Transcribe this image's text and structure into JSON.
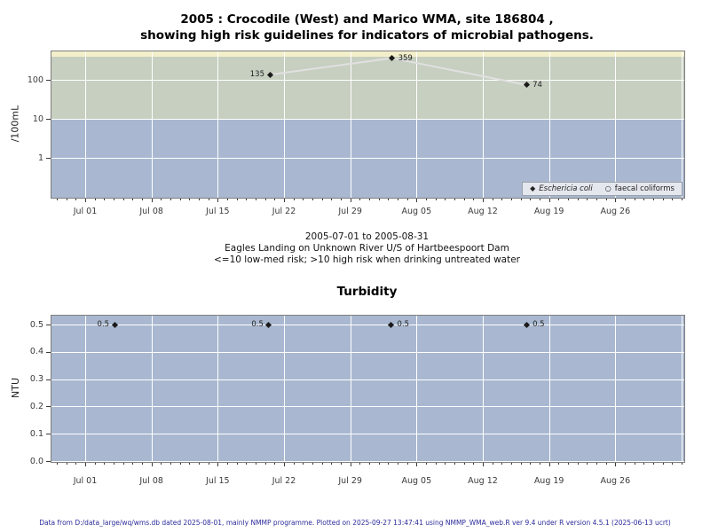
{
  "header": {
    "title_line1": "2005 : Crocodile (West) and Marico WMA, site 186804 ,",
    "title_line2": "showing high risk guidelines for indicators of microbial pathogens."
  },
  "subtitle": {
    "lines": [
      "2005-07-01 to 2005-08-31",
      "Eagles Landing on Unknown River U/S of Hartbeespoort Dam",
      "<=10 low-med risk; >10 high risk when drinking untreated water"
    ]
  },
  "footer": {
    "text": "Data from D:/data_large/wq/wms.db dated 2025-08-01, mainly NMMP programme. Plotted on 2025-09-27 13:47:41 using NMMP_WMA_web.R ver 9.4 under R version 4.5.1 (2025-06-13 ucrt)",
    "color": "#2b2b9b"
  },
  "chart_data": [
    {
      "type": "line",
      "title": "",
      "ylabel": "/100mL",
      "yscale": "log",
      "ylim": [
        0.09,
        533
      ],
      "yticks": [
        {
          "v": 100,
          "label": "100"
        },
        {
          "v": 10,
          "label": "10"
        },
        {
          "v": 1,
          "label": "1"
        }
      ],
      "x_unit": "days-after-2005-07-01",
      "xlim_days": [
        -3.6,
        63.3
      ],
      "xticks": [
        {
          "day": 0,
          "label": "Jul 01"
        },
        {
          "day": 7,
          "label": "Jul 08"
        },
        {
          "day": 14,
          "label": "Jul 15"
        },
        {
          "day": 21,
          "label": "Jul 22"
        },
        {
          "day": 28,
          "label": "Jul 29"
        },
        {
          "day": 35,
          "label": "Aug 05"
        },
        {
          "day": 42,
          "label": "Aug 12"
        },
        {
          "day": 49,
          "label": "Aug 19"
        },
        {
          "day": 56,
          "label": "Aug 26"
        }
      ],
      "grid_weekly_days": [
        0,
        7,
        14,
        21,
        28,
        35,
        42,
        49,
        56,
        63
      ],
      "bands": [
        {
          "name": "very-high-risk-band",
          "from": 400,
          "to": 533,
          "color": "#f3efca"
        },
        {
          "name": "high-risk-band",
          "from": 10,
          "to": 400,
          "color": "#c6cfc0"
        },
        {
          "name": "low-med-risk-band",
          "from": 0.09,
          "to": 10,
          "color": "#a9b8d0"
        }
      ],
      "series": [
        {
          "name": "Eschericia coli",
          "marker": "filled-diamond",
          "marker_color": "#1a1a1a",
          "line_color": "#e0e0e0",
          "points": [
            {
              "day": 19.5,
              "value": 135,
              "label": "135",
              "label_side": "left"
            },
            {
              "day": 32.4,
              "value": 359,
              "label": "359",
              "label_side": "right"
            },
            {
              "day": 46.6,
              "value": 74,
              "label": "74",
              "label_side": "right"
            }
          ]
        },
        {
          "name": "faecal coliforms",
          "marker": "open-circle",
          "marker_color": "#1a1a1a",
          "points": []
        }
      ],
      "legend": {
        "position": "bottom-right",
        "entries": [
          {
            "marker": "filled-diamond",
            "label": "Eschericia coli",
            "italic": true
          },
          {
            "marker": "open-circle",
            "label": "faecal coliforms",
            "italic": false
          }
        ]
      }
    },
    {
      "type": "scatter",
      "title": "Turbidity",
      "ylabel": "NTU",
      "yscale": "linear",
      "ylim": [
        -0.003,
        0.532
      ],
      "background_color": "#a9b8d0",
      "yticks": [
        {
          "v": 0.5,
          "label": "0.5"
        },
        {
          "v": 0.4,
          "label": "0.4"
        },
        {
          "v": 0.3,
          "label": "0.3"
        },
        {
          "v": 0.2,
          "label": "0.2"
        },
        {
          "v": 0.1,
          "label": "0.1"
        },
        {
          "v": 0.0,
          "label": "0.0"
        }
      ],
      "x_unit": "days-after-2005-07-01",
      "xlim_days": [
        -3.6,
        63.3
      ],
      "xticks": [
        {
          "day": 0,
          "label": "Jul 01"
        },
        {
          "day": 7,
          "label": "Jul 08"
        },
        {
          "day": 14,
          "label": "Jul 15"
        },
        {
          "day": 21,
          "label": "Jul 22"
        },
        {
          "day": 28,
          "label": "Jul 29"
        },
        {
          "day": 35,
          "label": "Aug 05"
        },
        {
          "day": 42,
          "label": "Aug 12"
        },
        {
          "day": 49,
          "label": "Aug 19"
        },
        {
          "day": 56,
          "label": "Aug 26"
        }
      ],
      "grid_weekly_days": [
        0,
        7,
        14,
        21,
        28,
        35,
        42,
        49,
        56,
        63
      ],
      "series": [
        {
          "name": "Turbidity",
          "marker": "filled-diamond",
          "marker_color": "#1a1a1a",
          "points": [
            {
              "day": 3.1,
              "value": 0.5,
              "label": "0.5",
              "label_side": "left"
            },
            {
              "day": 19.4,
              "value": 0.5,
              "label": "0.5",
              "label_side": "left"
            },
            {
              "day": 32.3,
              "value": 0.5,
              "label": "0.5",
              "label_side": "right"
            },
            {
              "day": 46.6,
              "value": 0.5,
              "label": "0.5",
              "label_side": "right"
            }
          ]
        }
      ]
    }
  ]
}
